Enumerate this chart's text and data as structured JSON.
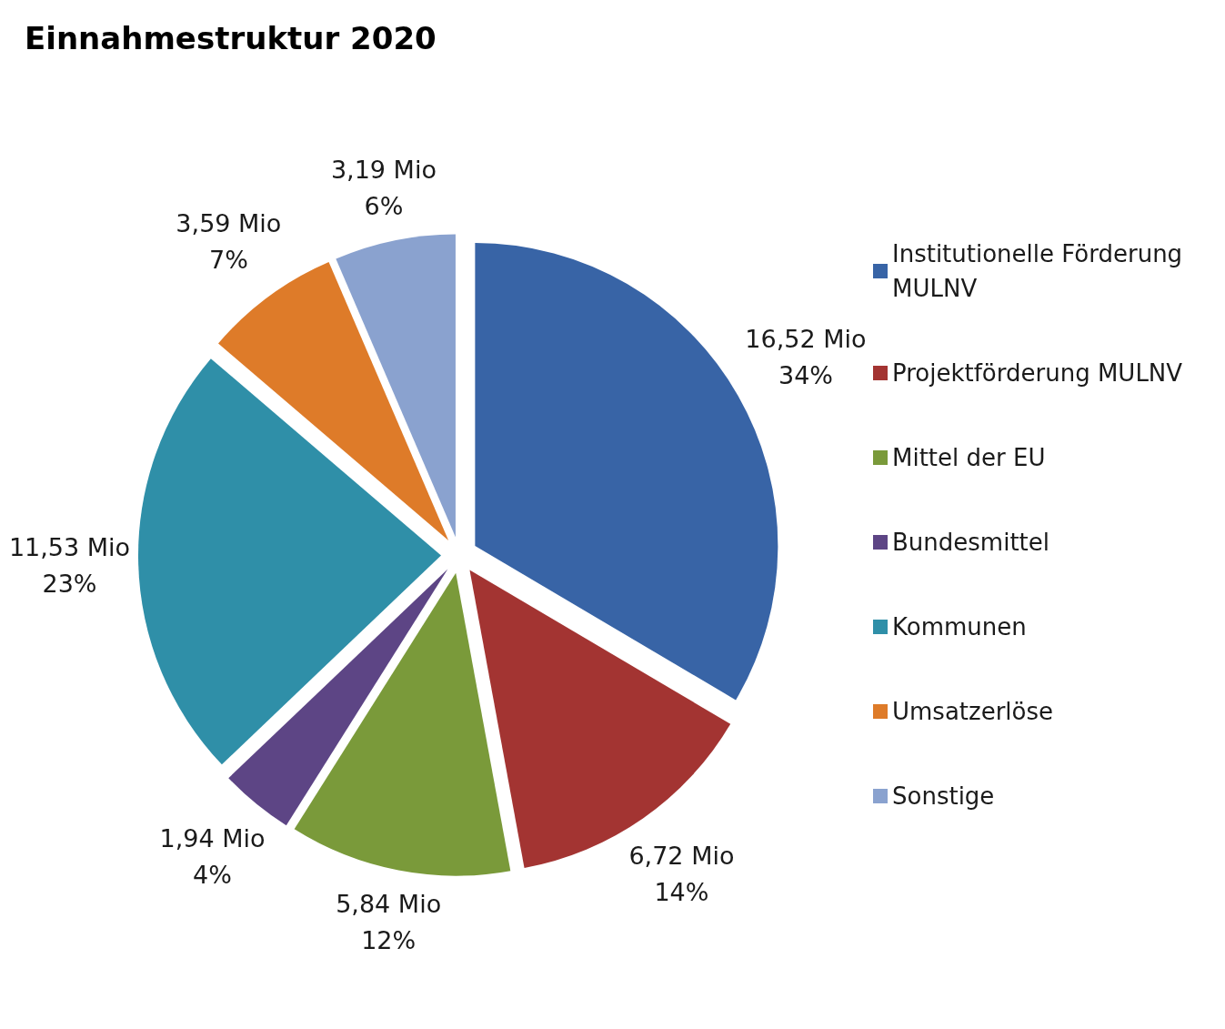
{
  "chart_data": {
    "type": "pie",
    "title": "Einnahmestruktur 2020",
    "categories": [
      "Institutionelle Förderung MULNV",
      "Projektförderung MULNV",
      "Mittel der EU",
      "Bundesmittel",
      "Kommunen",
      "Umsatzerlöse",
      "Sonstige"
    ],
    "values": [
      16.52,
      6.72,
      5.84,
      1.94,
      11.53,
      3.59,
      3.19
    ],
    "colors": [
      "#3864a6",
      "#a33432",
      "#7a9a3a",
      "#5d4585",
      "#2f8fa8",
      "#de7b29",
      "#8aa2cf"
    ],
    "value_labels": [
      "16,52 Mio\n34%",
      "6,72 Mio\n14%",
      "5,84 Mio\n12%",
      "1,94 Mio\n4%",
      "11,53 Mio\n23%",
      "3,59 Mio\n7%",
      "3,19 Mio\n6%"
    ],
    "legend": "right"
  }
}
